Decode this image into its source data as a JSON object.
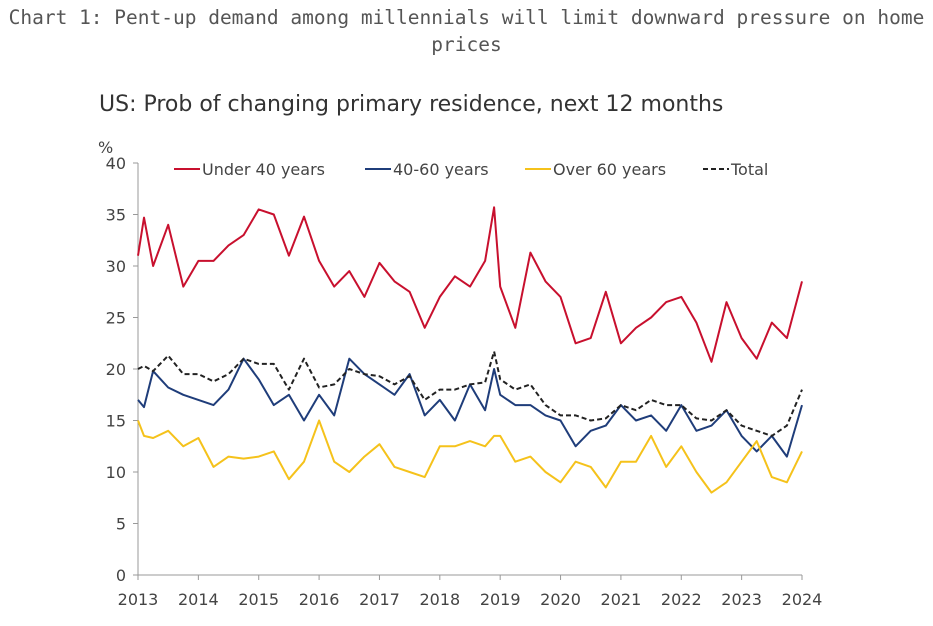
{
  "title": "Chart 1: Pent-up demand among millennials will limit downward pressure on home prices",
  "chart_data": {
    "type": "line",
    "title": "US: Prob of changing primary residence, next 12 months",
    "ylabel": "%",
    "xlabel": "",
    "xlim": [
      2013,
      2024
    ],
    "ylim": [
      0,
      40
    ],
    "xticks": [
      "2013",
      "2014",
      "2015",
      "2016",
      "2017",
      "2018",
      "2019",
      "2020",
      "2021",
      "2022",
      "2023",
      "2024"
    ],
    "yticks": [
      "0",
      "5",
      "10",
      "15",
      "20",
      "25",
      "30",
      "35",
      "40"
    ],
    "grid": false,
    "legend": "top",
    "series": [
      {
        "name": "Under 40 years",
        "color": "#c8102e",
        "dash": false,
        "x": [
          2013.0,
          2013.1,
          2013.25,
          2013.5,
          2013.75,
          2014.0,
          2014.25,
          2014.5,
          2014.75,
          2015.0,
          2015.25,
          2015.5,
          2015.75,
          2016.0,
          2016.25,
          2016.5,
          2016.75,
          2017.0,
          2017.25,
          2017.5,
          2017.75,
          2018.0,
          2018.25,
          2018.5,
          2018.75,
          2018.9,
          2019.0,
          2019.25,
          2019.5,
          2019.75,
          2020.0,
          2020.25,
          2020.5,
          2020.75,
          2021.0,
          2021.25,
          2021.5,
          2021.75,
          2022.0,
          2022.25,
          2022.5,
          2022.75,
          2023.0,
          2023.25,
          2023.5,
          2023.75,
          2024.0
        ],
        "y": [
          31,
          34.7,
          30,
          34,
          28,
          30.5,
          30.5,
          32,
          33,
          35.5,
          35,
          31,
          34.8,
          30.5,
          28,
          29.5,
          27,
          30.3,
          28.5,
          27.5,
          24,
          27,
          29,
          28,
          30.5,
          35.7,
          28,
          24,
          31.3,
          28.5,
          27,
          22.5,
          23,
          27.5,
          22.5,
          24,
          25,
          26.5,
          27,
          24.5,
          20.7,
          26.5,
          23,
          21,
          24.5,
          23,
          28.5
        ]
      },
      {
        "name": "40-60 years",
        "color": "#1f3d7a",
        "dash": false,
        "x": [
          2013.0,
          2013.1,
          2013.25,
          2013.5,
          2013.75,
          2014.0,
          2014.25,
          2014.5,
          2014.75,
          2015.0,
          2015.25,
          2015.5,
          2015.75,
          2016.0,
          2016.25,
          2016.5,
          2016.75,
          2017.0,
          2017.25,
          2017.5,
          2017.75,
          2018.0,
          2018.25,
          2018.5,
          2018.75,
          2018.9,
          2019.0,
          2019.25,
          2019.5,
          2019.75,
          2020.0,
          2020.25,
          2020.5,
          2020.75,
          2021.0,
          2021.25,
          2021.5,
          2021.75,
          2022.0,
          2022.25,
          2022.5,
          2022.75,
          2023.0,
          2023.25,
          2023.5,
          2023.75,
          2024.0
        ],
        "y": [
          17,
          16.3,
          19.8,
          18.2,
          17.5,
          17,
          16.5,
          18,
          21,
          19,
          16.5,
          17.5,
          15,
          17.5,
          15.5,
          21,
          19.5,
          18.5,
          17.5,
          19.5,
          15.5,
          17,
          15,
          18.5,
          16,
          20,
          17.5,
          16.5,
          16.5,
          15.5,
          15,
          12.5,
          14,
          14.5,
          16.5,
          15,
          15.5,
          14,
          16.5,
          14,
          14.5,
          16,
          13.5,
          12,
          13.5,
          11.5,
          16.5
        ]
      },
      {
        "name": "Over 60 years",
        "color": "#f5c21b",
        "dash": false,
        "x": [
          2013.0,
          2013.1,
          2013.25,
          2013.5,
          2013.75,
          2014.0,
          2014.25,
          2014.5,
          2014.75,
          2015.0,
          2015.25,
          2015.5,
          2015.75,
          2016.0,
          2016.25,
          2016.5,
          2016.75,
          2017.0,
          2017.25,
          2017.5,
          2017.75,
          2018.0,
          2018.25,
          2018.5,
          2018.75,
          2018.9,
          2019.0,
          2019.25,
          2019.5,
          2019.75,
          2020.0,
          2020.25,
          2020.5,
          2020.75,
          2021.0,
          2021.25,
          2021.5,
          2021.75,
          2022.0,
          2022.25,
          2022.5,
          2022.75,
          2023.0,
          2023.25,
          2023.5,
          2023.75,
          2024.0
        ],
        "y": [
          15,
          13.5,
          13.3,
          14,
          12.5,
          13.3,
          10.5,
          11.5,
          11.3,
          11.5,
          12,
          9.3,
          11,
          15,
          11,
          10,
          11.5,
          12.7,
          10.5,
          10,
          9.5,
          12.5,
          12.5,
          13,
          12.5,
          13.5,
          13.5,
          11,
          11.5,
          10,
          9,
          11,
          10.5,
          8.5,
          11,
          11,
          13.5,
          10.5,
          12.5,
          10,
          8,
          9,
          11,
          13,
          9.5,
          9,
          12
        ]
      },
      {
        "name": "Total",
        "color": "#222222",
        "dash": true,
        "x": [
          2013.0,
          2013.1,
          2013.25,
          2013.5,
          2013.75,
          2014.0,
          2014.25,
          2014.5,
          2014.75,
          2015.0,
          2015.25,
          2015.5,
          2015.75,
          2016.0,
          2016.25,
          2016.5,
          2016.75,
          2017.0,
          2017.25,
          2017.5,
          2017.75,
          2018.0,
          2018.25,
          2018.5,
          2018.75,
          2018.9,
          2019.0,
          2019.25,
          2019.5,
          2019.75,
          2020.0,
          2020.25,
          2020.5,
          2020.75,
          2021.0,
          2021.25,
          2021.5,
          2021.75,
          2022.0,
          2022.25,
          2022.5,
          2022.75,
          2023.0,
          2023.25,
          2023.5,
          2023.75,
          2024.0
        ],
        "y": [
          20,
          20.3,
          19.8,
          21.3,
          19.5,
          19.5,
          18.8,
          19.5,
          21,
          20.5,
          20.5,
          18,
          21,
          18.2,
          18.5,
          20,
          19.5,
          19.3,
          18.5,
          19.3,
          17,
          18,
          18,
          18.5,
          18.7,
          21.7,
          19,
          18,
          18.5,
          16.5,
          15.5,
          15.5,
          15,
          15.2,
          16.5,
          16,
          17,
          16.5,
          16.5,
          15.2,
          15,
          16,
          14.5,
          14,
          13.5,
          14.5,
          18
        ]
      }
    ]
  }
}
